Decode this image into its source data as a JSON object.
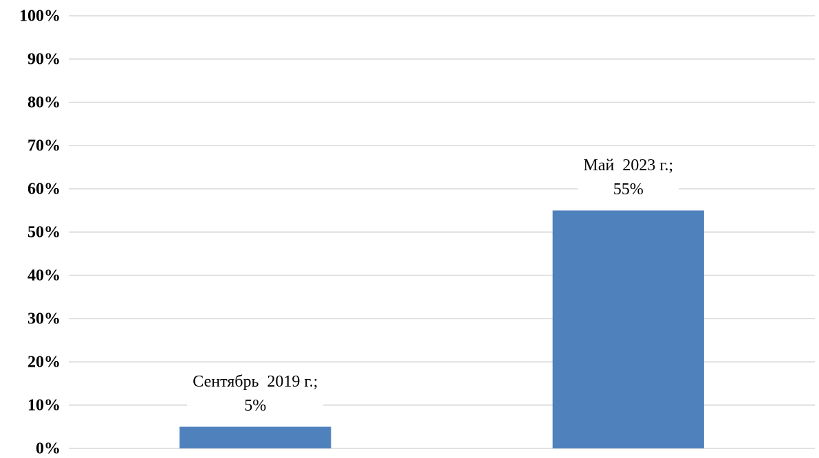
{
  "chart_data": {
    "type": "bar",
    "categories": [
      "Сентябрь  2019 г.;",
      "Май  2023 г.;"
    ],
    "values": [
      5,
      55
    ],
    "value_labels": [
      "5%",
      "55%"
    ],
    "color": "#4f81bd",
    "ylim": [
      0,
      100
    ],
    "yticks": [
      {
        "value": 0,
        "label": "0%"
      },
      {
        "value": 10,
        "label": "10%"
      },
      {
        "value": 20,
        "label": "20%"
      },
      {
        "value": 30,
        "label": "30%"
      },
      {
        "value": 40,
        "label": "40%"
      },
      {
        "value": 50,
        "label": "50%"
      },
      {
        "value": 60,
        "label": "60%"
      },
      {
        "value": 70,
        "label": "70%"
      },
      {
        "value": 80,
        "label": "80%"
      },
      {
        "value": 90,
        "label": "90%"
      },
      {
        "value": 100,
        "label": "100%"
      }
    ],
    "grid": true
  }
}
